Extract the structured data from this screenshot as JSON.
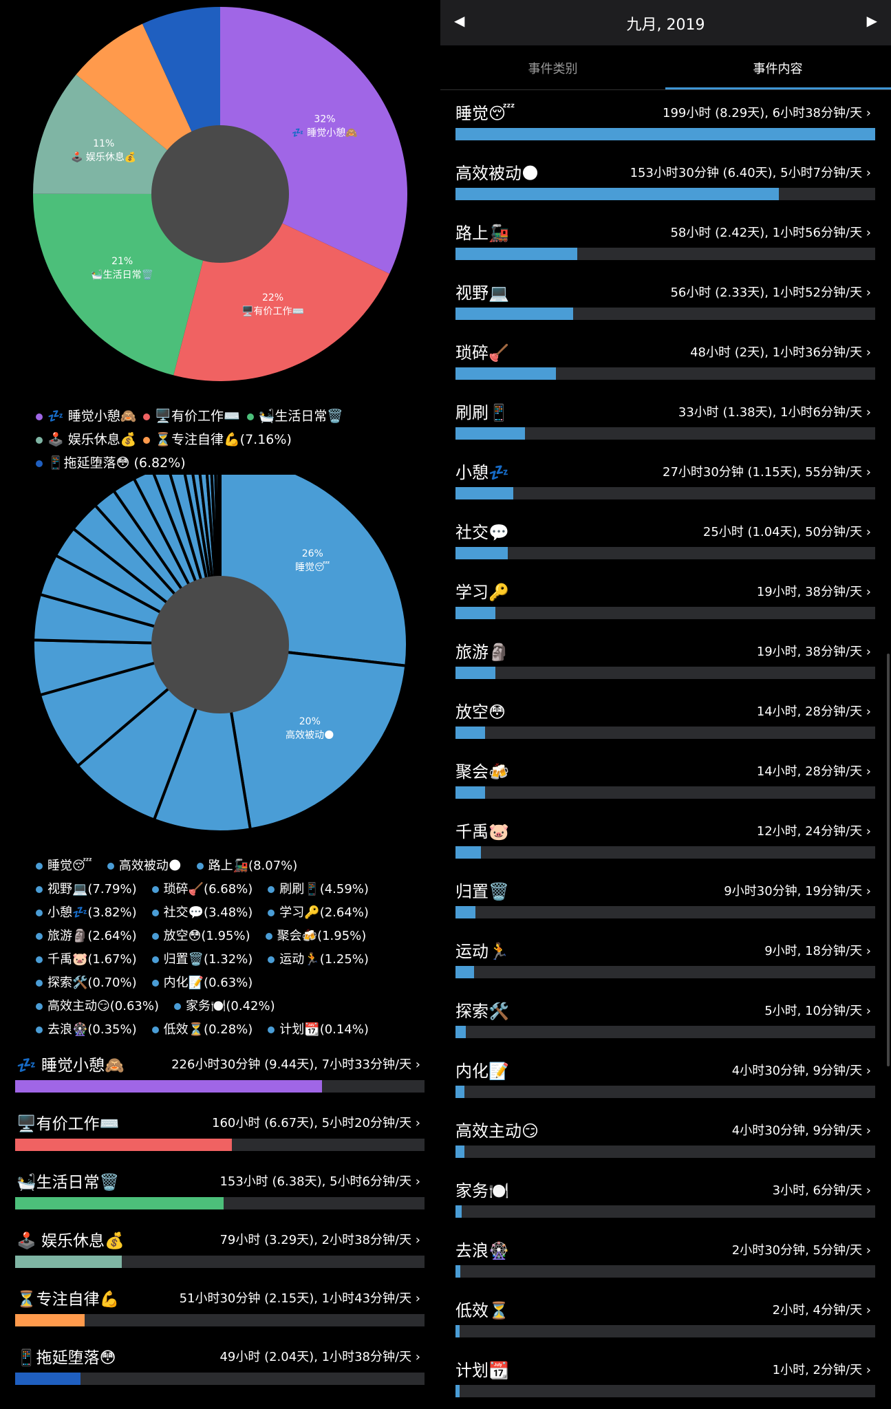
{
  "pie1": {
    "slices": [
      {
        "label": "睡觉小憩🙈",
        "pct": 32,
        "color": "#a066e6",
        "show_label": "32%",
        "label_text": "💤 睡觉小憩🙈"
      },
      {
        "label": "有价工作",
        "pct": 22,
        "color": "#f06262",
        "show_label": "22%",
        "label_text": "🖥️有价工作⌨️"
      },
      {
        "label": "生活日常",
        "pct": 21,
        "color": "#4cbf7a",
        "show_label": "21%",
        "label_text": "🛀生活日常🗑️"
      },
      {
        "label": "娱乐休息",
        "pct": 11,
        "color": "#7fb5a4",
        "show_label": "11%",
        "label_text": "🕹️ 娱乐休息💰"
      },
      {
        "label": "专注自律",
        "pct": 7.16,
        "color": "#ff9a4c",
        "show_label": "",
        "label_text": ""
      },
      {
        "label": "拖延堕落",
        "pct": 6.82,
        "color": "#1f5fc0",
        "show_label": "",
        "label_text": ""
      }
    ],
    "legend": [
      {
        "text": "💤 睡觉小憩🙈",
        "color": "#a066e6"
      },
      {
        "text": "🖥️有价工作⌨️",
        "color": "#f06262"
      },
      {
        "text": "🛀生活日常🗑️",
        "color": "#4cbf7a"
      },
      {
        "text": "🕹️ 娱乐休息💰",
        "color": "#7fb5a4"
      },
      {
        "text": "⏳专注自律💪(7.16%)",
        "color": "#ff9a4c"
      },
      {
        "text": "📱拖延堕落😳 (6.82%)",
        "color": "#1f5fc0"
      }
    ]
  },
  "pie2": {
    "color": "#4a9dd6",
    "slices_pct": [
      26,
      20,
      8.07,
      7.79,
      6.68,
      4.59,
      3.82,
      3.48,
      2.64,
      2.64,
      1.95,
      1.95,
      1.67,
      1.32,
      1.25,
      0.7,
      0.63,
      0.63,
      0.42,
      0.35,
      0.28,
      0.14
    ],
    "label1_pct": "26%",
    "label1_text": "睡觉😴",
    "label2_pct": "20%",
    "label2_text": "高效被动🌑",
    "legend_rows": [
      [
        "睡觉😴",
        "高效被动🌑",
        "路上🚂(8.07%)"
      ],
      [
        "视野💻(7.79%)",
        "琐碎🪠(6.68%)",
        "刷刷📱(4.59%)"
      ],
      [
        "小憩💤(3.82%)",
        "社交💬(3.48%)",
        "学习🔑(2.64%)"
      ],
      [
        "旅游🗿(2.64%)",
        "放空😳(1.95%)",
        "聚会🍻(1.95%)"
      ],
      [
        "千禹🐷(1.67%)",
        "归置🗑️(1.32%)",
        "运动🏃(1.25%)"
      ],
      [
        "探索🛠️(0.70%)",
        "内化📝(0.63%)"
      ],
      [
        "高效主动😏(0.63%)",
        "家务🍽️(0.42%)"
      ],
      [
        "去浪🎡(0.35%)",
        "低效⏳(0.28%)",
        "计划📆(0.14%)"
      ]
    ]
  },
  "categories": [
    {
      "name": "💤 睡觉小憩🙈",
      "value": "226小时30分钟 (9.44天), 7小时33分钟/天 ›",
      "frac": 0.75,
      "color": "#a066e6"
    },
    {
      "name": "🖥️有价工作⌨️",
      "value": "160小时 (6.67天), 5小时20分钟/天 ›",
      "frac": 0.53,
      "color": "#f06262"
    },
    {
      "name": "🛀生活日常🗑️",
      "value": "153小时 (6.38天), 5小时6分钟/天 ›",
      "frac": 0.51,
      "color": "#4cbf7a"
    },
    {
      "name": "🕹️ 娱乐休息💰",
      "value": "79小时 (3.29天), 2小时38分钟/天 ›",
      "frac": 0.26,
      "color": "#7fb5a4"
    },
    {
      "name": "⏳专注自律💪",
      "value": "51小时30分钟 (2.15天), 1小时43分钟/天 ›",
      "frac": 0.17,
      "color": "#ff9a4c"
    },
    {
      "name": "📱拖延堕落😳",
      "value": "49小时 (2.04天), 1小时38分钟/天 ›",
      "frac": 0.16,
      "color": "#1f5fc0"
    }
  ],
  "header": {
    "title": "九月, 2019",
    "prev": "◀",
    "next": "▶"
  },
  "tabs": {
    "tab1": "事件类别",
    "tab2": "事件内容"
  },
  "events": [
    {
      "name": "睡觉😴",
      "value": "199小时 (8.29天), 6小时38分钟/天 ›",
      "frac": 1.0
    },
    {
      "name": "高效被动🌑",
      "value": "153小时30分钟 (6.40天), 5小时7分钟/天 ›",
      "frac": 0.77
    },
    {
      "name": "路上🚂",
      "value": "58小时 (2.42天), 1小时56分钟/天 ›",
      "frac": 0.29
    },
    {
      "name": "视野💻",
      "value": "56小时 (2.33天), 1小时52分钟/天 ›",
      "frac": 0.28
    },
    {
      "name": "琐碎🪠",
      "value": "48小时 (2天), 1小时36分钟/天 ›",
      "frac": 0.24
    },
    {
      "name": "刷刷📱",
      "value": "33小时 (1.38天), 1小时6分钟/天 ›",
      "frac": 0.165
    },
    {
      "name": "小憩💤",
      "value": "27小时30分钟 (1.15天), 55分钟/天 ›",
      "frac": 0.138
    },
    {
      "name": "社交💬",
      "value": "25小时 (1.04天), 50分钟/天 ›",
      "frac": 0.125
    },
    {
      "name": "学习🔑",
      "value": "19小时, 38分钟/天 ›",
      "frac": 0.095
    },
    {
      "name": "旅游🗿",
      "value": "19小时, 38分钟/天 ›",
      "frac": 0.095
    },
    {
      "name": "放空😳",
      "value": "14小时, 28分钟/天 ›",
      "frac": 0.07
    },
    {
      "name": "聚会🍻",
      "value": "14小时, 28分钟/天 ›",
      "frac": 0.07
    },
    {
      "name": "千禹🐷",
      "value": "12小时, 24分钟/天 ›",
      "frac": 0.06
    },
    {
      "name": "归置🗑️",
      "value": "9小时30分钟, 19分钟/天 ›",
      "frac": 0.048
    },
    {
      "name": "运动🏃",
      "value": "9小时, 18分钟/天 ›",
      "frac": 0.045
    },
    {
      "name": "探索🛠️",
      "value": "5小时, 10分钟/天 ›",
      "frac": 0.025
    },
    {
      "name": "内化📝",
      "value": "4小时30分钟, 9分钟/天 ›",
      "frac": 0.022
    },
    {
      "name": "高效主动😏",
      "value": "4小时30分钟, 9分钟/天 ›",
      "frac": 0.022
    },
    {
      "name": "家务🍽️",
      "value": "3小时, 6分钟/天 ›",
      "frac": 0.015
    },
    {
      "name": "去浪🎡",
      "value": "2小时30分钟, 5分钟/天 ›",
      "frac": 0.012
    },
    {
      "name": "低效⏳",
      "value": "2小时, 4分钟/天 ›",
      "frac": 0.01
    },
    {
      "name": "计划📆",
      "value": "1小时, 2分钟/天 ›",
      "frac": 0.005
    }
  ]
}
